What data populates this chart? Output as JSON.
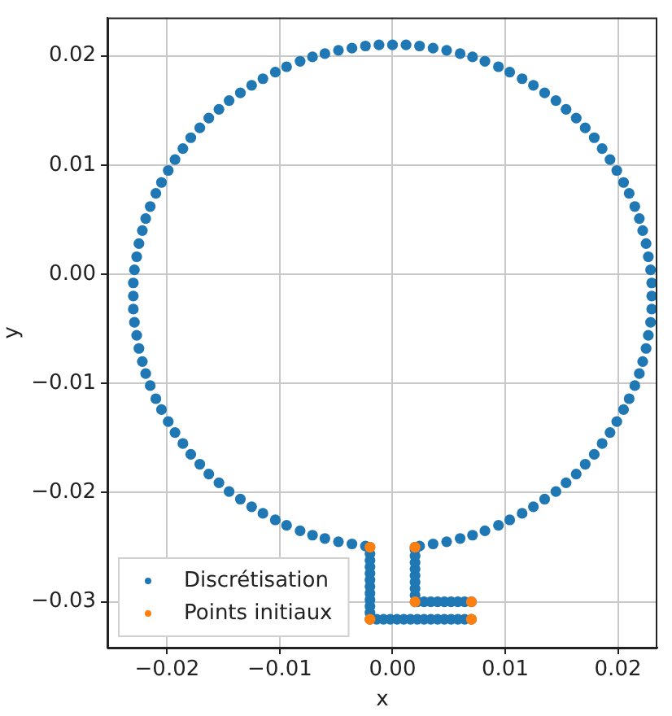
{
  "chart_data": {
    "type": "scatter",
    "xlabel": "x",
    "ylabel": "y",
    "xlim": [
      -0.0253,
      0.0235
    ],
    "ylim": [
      -0.0342,
      0.0235
    ],
    "xticks": [
      {
        "value": -0.02,
        "label": "−0.02"
      },
      {
        "value": -0.01,
        "label": "−0.01"
      },
      {
        "value": 0,
        "label": "0.00"
      },
      {
        "value": 0.01,
        "label": "0.01"
      },
      {
        "value": 0.02,
        "label": "0.02"
      }
    ],
    "yticks": [
      {
        "value": -0.03,
        "label": "−0.03"
      },
      {
        "value": -0.02,
        "label": "−0.02"
      },
      {
        "value": -0.01,
        "label": "−0.01"
      },
      {
        "value": 0,
        "label": "0.00"
      },
      {
        "value": 0.01,
        "label": "0.01"
      },
      {
        "value": 0.02,
        "label": "0.02"
      }
    ],
    "grid": true,
    "legend": "bottom left",
    "marker": "circle",
    "series": [
      {
        "name": "Discrétisation",
        "color": "#1f77b4",
        "x": [
          0.002,
          0.0024,
          0.0036,
          0.0048,
          0.006,
          0.0071,
          0.0082,
          0.0094,
          0.0104,
          0.0115,
          0.0125,
          0.0135,
          0.0145,
          0.0154,
          0.0163,
          0.0171,
          0.0179,
          0.0186,
          0.0193,
          0.0199,
          0.0205,
          0.021,
          0.0215,
          0.0219,
          0.0222,
          0.0225,
          0.0227,
          0.0229,
          0.023,
          0.023,
          0.023,
          0.0229,
          0.0227,
          0.0225,
          0.0222,
          0.0219,
          0.0215,
          0.021,
          0.0205,
          0.0199,
          0.0193,
          0.0186,
          0.0179,
          0.0171,
          0.0163,
          0.0154,
          0.0145,
          0.0135,
          0.0125,
          0.0115,
          0.0104,
          0.0094,
          0.0082,
          0.0071,
          0.006,
          0.0048,
          0.0036,
          0.0024,
          0.0012,
          0,
          -0.0012,
          -0.0024,
          -0.0036,
          -0.0048,
          -0.006,
          -0.0071,
          -0.0082,
          -0.0094,
          -0.0104,
          -0.0115,
          -0.0125,
          -0.0135,
          -0.0145,
          -0.0154,
          -0.0163,
          -0.0171,
          -0.0179,
          -0.0186,
          -0.0193,
          -0.0199,
          -0.0205,
          -0.021,
          -0.0215,
          -0.0219,
          -0.0222,
          -0.0225,
          -0.0227,
          -0.0229,
          -0.023,
          -0.023,
          -0.023,
          -0.0229,
          -0.0227,
          -0.0225,
          -0.0222,
          -0.0219,
          -0.0215,
          -0.021,
          -0.0205,
          -0.0199,
          -0.0193,
          -0.0186,
          -0.0179,
          -0.0171,
          -0.0163,
          -0.0154,
          -0.0145,
          -0.0135,
          -0.0125,
          -0.0115,
          -0.0104,
          -0.0094,
          -0.0082,
          -0.0071,
          -0.006,
          -0.0048,
          -0.0036,
          -0.0024,
          -0.002,
          -0.002,
          -0.002,
          -0.002,
          -0.002,
          -0.002,
          -0.002,
          -0.002,
          -0.002,
          -0.002,
          -0.002,
          -0.002,
          -0.0014,
          -0.0008,
          -0.0002,
          0.0004,
          0.001,
          0.0016,
          0.0022,
          0.0028,
          0.0034,
          0.004,
          0.0046,
          0.0052,
          0.0058,
          0.0064,
          0.007,
          0.007,
          0.0064,
          0.0058,
          0.0052,
          0.0046,
          0.004,
          0.0034,
          0.0028,
          0.0022,
          0.002,
          0.002,
          0.002,
          0.002,
          0.002,
          0.002,
          0.002,
          0.002,
          0.002
        ],
        "values": [
          -0.025,
          -0.0249,
          -0.0247,
          -0.0245,
          -0.0242,
          -0.0239,
          -0.0235,
          -0.023,
          -0.0225,
          -0.0219,
          -0.0213,
          -0.0206,
          -0.0199,
          -0.0191,
          -0.0183,
          -0.0174,
          -0.0165,
          -0.0155,
          -0.0145,
          -0.0135,
          -0.0124,
          -0.0114,
          -0.0102,
          -0.0091,
          -0.008,
          -0.0068,
          -0.0056,
          -0.0044,
          -0.0032,
          -0.002,
          -0.0008,
          0.0004,
          0.0016,
          0.0028,
          0.004,
          0.0051,
          0.0062,
          0.0074,
          0.0084,
          0.0095,
          0.0105,
          0.0115,
          0.0125,
          0.0134,
          0.0143,
          0.0151,
          0.0159,
          0.0166,
          0.0173,
          0.0179,
          0.0185,
          0.019,
          0.0195,
          0.0199,
          0.0202,
          0.0205,
          0.0207,
          0.0209,
          0.021,
          0.021,
          0.021,
          0.0209,
          0.0207,
          0.0205,
          0.0202,
          0.0199,
          0.0195,
          0.019,
          0.0185,
          0.0179,
          0.0173,
          0.0166,
          0.0159,
          0.0151,
          0.0143,
          0.0134,
          0.0125,
          0.0115,
          0.0105,
          0.0095,
          0.0084,
          0.0074,
          0.0062,
          0.0051,
          0.004,
          0.0028,
          0.0016,
          0.0004,
          -0.0008,
          -0.002,
          -0.0032,
          -0.0044,
          -0.0056,
          -0.0068,
          -0.008,
          -0.0091,
          -0.0102,
          -0.0114,
          -0.0124,
          -0.0135,
          -0.0145,
          -0.0155,
          -0.0165,
          -0.0174,
          -0.0183,
          -0.0191,
          -0.0199,
          -0.0206,
          -0.0213,
          -0.0219,
          -0.0225,
          -0.023,
          -0.0235,
          -0.0239,
          -0.0242,
          -0.0245,
          -0.0247,
          -0.0249,
          -0.025,
          -0.0256,
          -0.0262,
          -0.0268,
          -0.0274,
          -0.028,
          -0.0286,
          -0.0292,
          -0.0298,
          -0.0304,
          -0.031,
          -0.0316,
          -0.0316,
          -0.0316,
          -0.0316,
          -0.0316,
          -0.0316,
          -0.0316,
          -0.0316,
          -0.0316,
          -0.0316,
          -0.0316,
          -0.0316,
          -0.0316,
          -0.0316,
          -0.0316,
          -0.0316,
          -0.03,
          -0.03,
          -0.03,
          -0.03,
          -0.03,
          -0.03,
          -0.03,
          -0.03,
          -0.03,
          -0.03,
          -0.0294,
          -0.0288,
          -0.0282,
          -0.0276,
          -0.027,
          -0.0264,
          -0.0258,
          -0.0252
        ]
      },
      {
        "name": "Points initiaux",
        "color": "#ff7f0e",
        "x": [
          -0.002,
          0.002,
          0.002,
          0.007,
          0.007,
          -0.002
        ],
        "values": [
          -0.025,
          -0.025,
          -0.03,
          -0.03,
          -0.0316,
          -0.0316
        ]
      }
    ]
  }
}
